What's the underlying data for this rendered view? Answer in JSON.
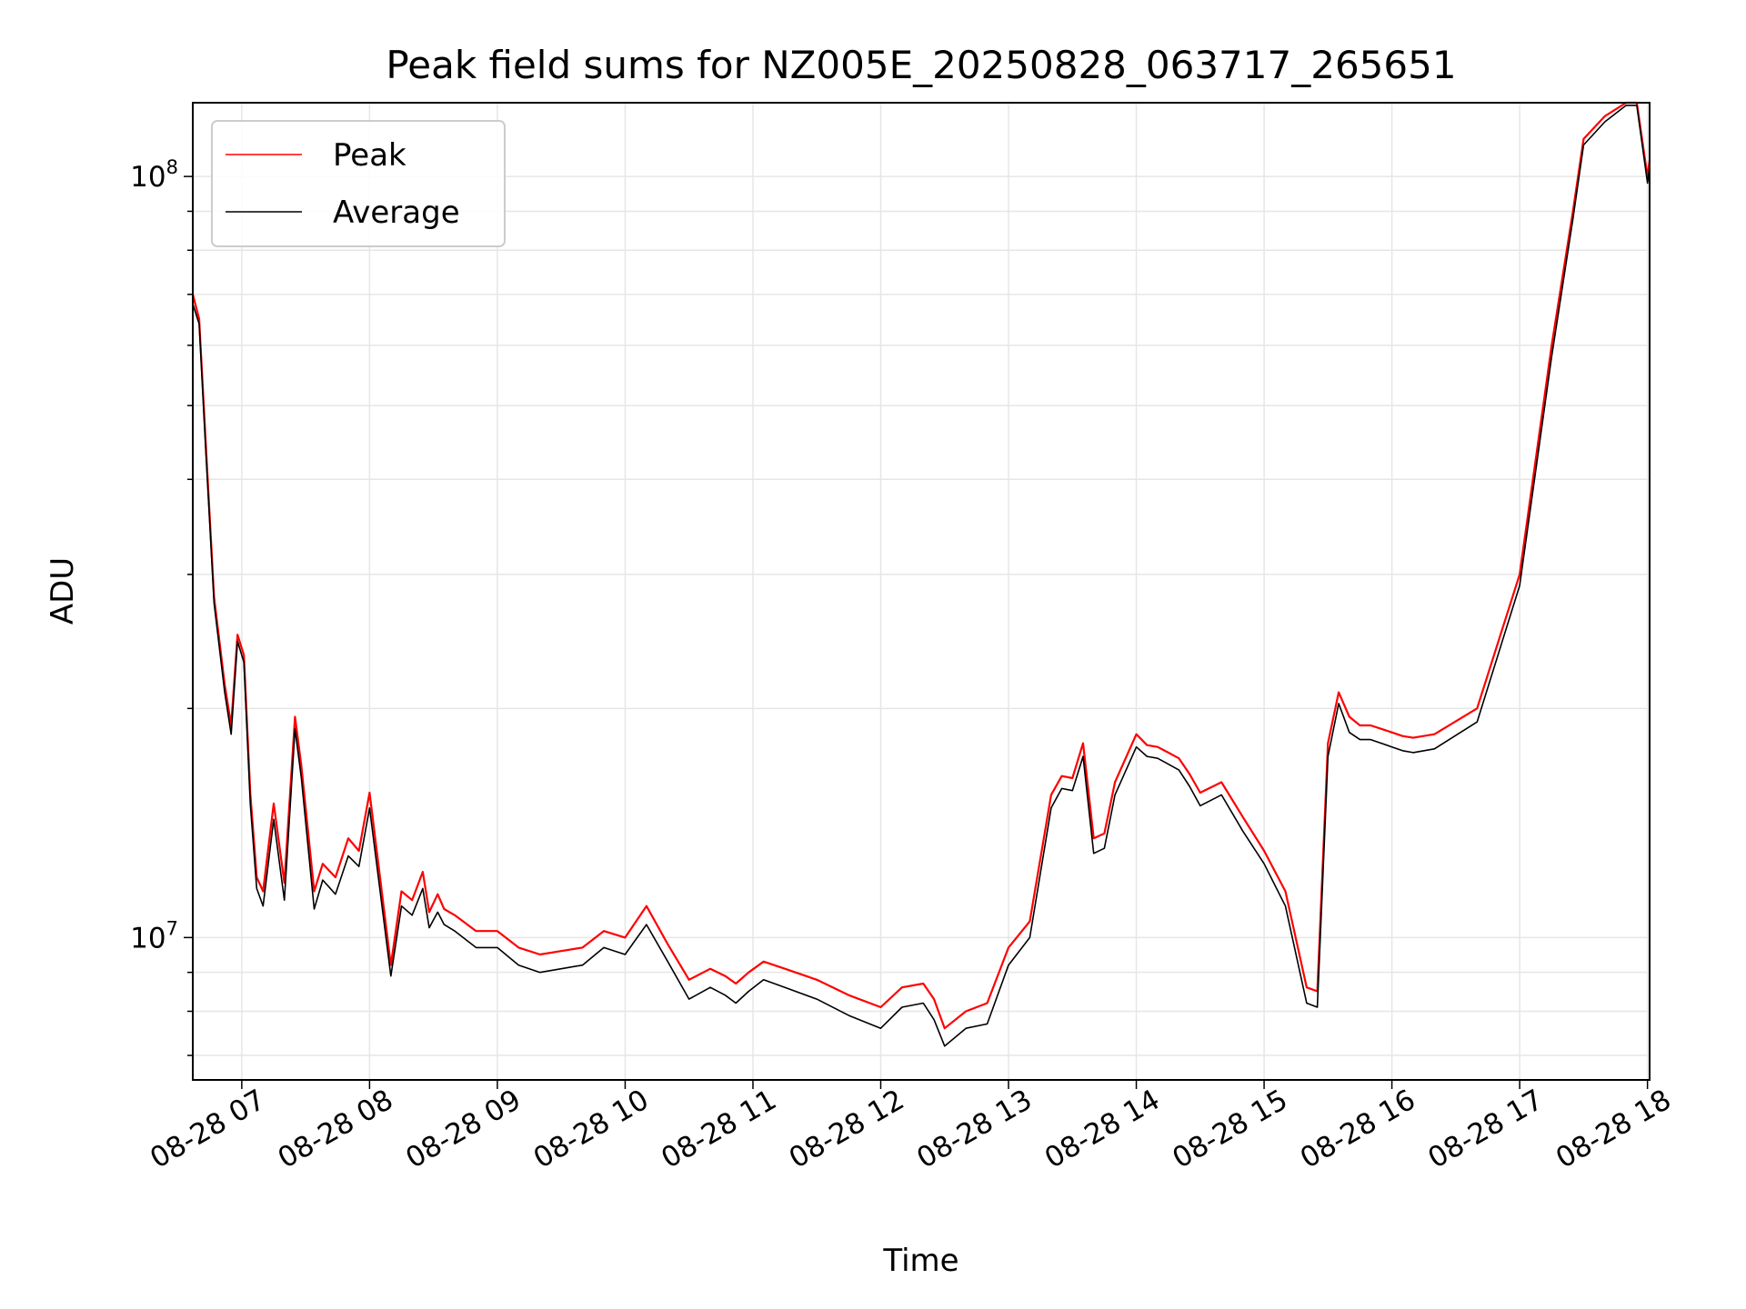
{
  "chart_data": {
    "type": "line",
    "title": "Peak field sums for NZ005E_20250828_063717_265651",
    "xlabel": "Time",
    "ylabel": "ADU",
    "yscale": "log",
    "ylim": [
      6500000,
      125000000
    ],
    "xlim": [
      "2025-08-28 06:37",
      "2025-08-28 18:01"
    ],
    "x_tick_labels": [
      "08-28 07",
      "08-28 08",
      "08-28 09",
      "08-28 10",
      "08-28 11",
      "08-28 12",
      "08-28 13",
      "08-28 14",
      "08-28 15",
      "08-28 16",
      "08-28 17",
      "08-28 18"
    ],
    "y_tick_labels": [
      {
        "base": "10",
        "exp": "7",
        "value": 10000000
      },
      {
        "base": "10",
        "exp": "8",
        "value": 100000000
      }
    ],
    "grid": true,
    "legend_position": "top-left",
    "series": [
      {
        "name": "Peak",
        "color": "#ff0000",
        "x": [
          "2025-08-28 06:37",
          "2025-08-28 06:40",
          "2025-08-28 06:43",
          "2025-08-28 06:47",
          "2025-08-28 06:52",
          "2025-08-28 06:55",
          "2025-08-28 06:58",
          "2025-08-28 07:01",
          "2025-08-28 07:04",
          "2025-08-28 07:07",
          "2025-08-28 07:10",
          "2025-08-28 07:15",
          "2025-08-28 07:20",
          "2025-08-28 07:25",
          "2025-08-28 07:28",
          "2025-08-28 07:34",
          "2025-08-28 07:38",
          "2025-08-28 07:44",
          "2025-08-28 07:50",
          "2025-08-28 07:55",
          "2025-08-28 08:00",
          "2025-08-28 08:10",
          "2025-08-28 08:15",
          "2025-08-28 08:20",
          "2025-08-28 08:25",
          "2025-08-28 08:28",
          "2025-08-28 08:32",
          "2025-08-28 08:35",
          "2025-08-28 08:40",
          "2025-08-28 08:50",
          "2025-08-28 09:00",
          "2025-08-28 09:10",
          "2025-08-28 09:20",
          "2025-08-28 09:30",
          "2025-08-28 09:40",
          "2025-08-28 09:50",
          "2025-08-28 10:00",
          "2025-08-28 10:10",
          "2025-08-28 10:20",
          "2025-08-28 10:30",
          "2025-08-28 10:40",
          "2025-08-28 10:47",
          "2025-08-28 10:52",
          "2025-08-28 10:58",
          "2025-08-28 11:05",
          "2025-08-28 11:15",
          "2025-08-28 11:30",
          "2025-08-28 11:45",
          "2025-08-28 12:00",
          "2025-08-28 12:10",
          "2025-08-28 12:20",
          "2025-08-28 12:25",
          "2025-08-28 12:30",
          "2025-08-28 12:40",
          "2025-08-28 12:50",
          "2025-08-28 13:00",
          "2025-08-28 13:10",
          "2025-08-28 13:20",
          "2025-08-28 13:25",
          "2025-08-28 13:30",
          "2025-08-28 13:35",
          "2025-08-28 13:40",
          "2025-08-28 13:45",
          "2025-08-28 13:50",
          "2025-08-28 14:00",
          "2025-08-28 14:05",
          "2025-08-28 14:10",
          "2025-08-28 14:15",
          "2025-08-28 14:20",
          "2025-08-28 14:25",
          "2025-08-28 14:30",
          "2025-08-28 14:40",
          "2025-08-28 14:50",
          "2025-08-28 15:00",
          "2025-08-28 15:10",
          "2025-08-28 15:20",
          "2025-08-28 15:25",
          "2025-08-28 15:30",
          "2025-08-28 15:35",
          "2025-08-28 15:40",
          "2025-08-28 15:45",
          "2025-08-28 15:50",
          "2025-08-28 15:55",
          "2025-08-28 16:00",
          "2025-08-28 16:05",
          "2025-08-28 16:10",
          "2025-08-28 16:20",
          "2025-08-28 16:40",
          "2025-08-28 17:00",
          "2025-08-28 17:15",
          "2025-08-28 17:25",
          "2025-08-28 17:30",
          "2025-08-28 17:40",
          "2025-08-28 17:50",
          "2025-08-28 17:55",
          "2025-08-28 18:00",
          "2025-08-28 18:01"
        ],
        "values": [
          70000000,
          65000000,
          45000000,
          28000000,
          21500000,
          19000000,
          25000000,
          23500000,
          15500000,
          12000000,
          11500000,
          15000000,
          11800000,
          19500000,
          16800000,
          11500000,
          12500000,
          12000000,
          13500000,
          13000000,
          15500000,
          9200000,
          11500000,
          11200000,
          12200000,
          10800000,
          11400000,
          10900000,
          10700000,
          10200000,
          10200000,
          9700000,
          9500000,
          9600000,
          9700000,
          10200000,
          10000000,
          11000000,
          9800000,
          8800000,
          9100000,
          8900000,
          8700000,
          9000000,
          9300000,
          9100000,
          8800000,
          8400000,
          8100000,
          8600000,
          8700000,
          8300000,
          7600000,
          8000000,
          8200000,
          9700000,
          10500000,
          15400000,
          16300000,
          16200000,
          18000000,
          13500000,
          13700000,
          16000000,
          18500000,
          17900000,
          17800000,
          17500000,
          17200000,
          16400000,
          15500000,
          16000000,
          14400000,
          13000000,
          11500000,
          8600000,
          8500000,
          18000000,
          21000000,
          19500000,
          19000000,
          19000000,
          18800000,
          18600000,
          18400000,
          18300000,
          18500000,
          20000000,
          30000000,
          60000000,
          90000000,
          112000000,
          120000000,
          125000000,
          125000000,
          100000000,
          105000000
        ]
      },
      {
        "name": "Average",
        "color": "#000000",
        "x": [
          "2025-08-28 06:37",
          "2025-08-28 06:40",
          "2025-08-28 06:43",
          "2025-08-28 06:47",
          "2025-08-28 06:52",
          "2025-08-28 06:55",
          "2025-08-28 06:58",
          "2025-08-28 07:01",
          "2025-08-28 07:04",
          "2025-08-28 07:07",
          "2025-08-28 07:10",
          "2025-08-28 07:15",
          "2025-08-28 07:20",
          "2025-08-28 07:25",
          "2025-08-28 07:28",
          "2025-08-28 07:34",
          "2025-08-28 07:38",
          "2025-08-28 07:44",
          "2025-08-28 07:50",
          "2025-08-28 07:55",
          "2025-08-28 08:00",
          "2025-08-28 08:10",
          "2025-08-28 08:15",
          "2025-08-28 08:20",
          "2025-08-28 08:25",
          "2025-08-28 08:28",
          "2025-08-28 08:32",
          "2025-08-28 08:35",
          "2025-08-28 08:40",
          "2025-08-28 08:50",
          "2025-08-28 09:00",
          "2025-08-28 09:10",
          "2025-08-28 09:20",
          "2025-08-28 09:30",
          "2025-08-28 09:40",
          "2025-08-28 09:50",
          "2025-08-28 10:00",
          "2025-08-28 10:10",
          "2025-08-28 10:20",
          "2025-08-28 10:30",
          "2025-08-28 10:40",
          "2025-08-28 10:47",
          "2025-08-28 10:52",
          "2025-08-28 10:58",
          "2025-08-28 11:05",
          "2025-08-28 11:15",
          "2025-08-28 11:30",
          "2025-08-28 11:45",
          "2025-08-28 12:00",
          "2025-08-28 12:10",
          "2025-08-28 12:20",
          "2025-08-28 12:25",
          "2025-08-28 12:30",
          "2025-08-28 12:40",
          "2025-08-28 12:50",
          "2025-08-28 13:00",
          "2025-08-28 13:10",
          "2025-08-28 13:20",
          "2025-08-28 13:25",
          "2025-08-28 13:30",
          "2025-08-28 13:35",
          "2025-08-28 13:40",
          "2025-08-28 13:45",
          "2025-08-28 13:50",
          "2025-08-28 14:00",
          "2025-08-28 14:05",
          "2025-08-28 14:10",
          "2025-08-28 14:15",
          "2025-08-28 14:20",
          "2025-08-28 14:25",
          "2025-08-28 14:30",
          "2025-08-28 14:40",
          "2025-08-28 14:50",
          "2025-08-28 15:00",
          "2025-08-28 15:10",
          "2025-08-28 15:20",
          "2025-08-28 15:25",
          "2025-08-28 15:30",
          "2025-08-28 15:35",
          "2025-08-28 15:40",
          "2025-08-28 15:45",
          "2025-08-28 15:50",
          "2025-08-28 15:55",
          "2025-08-28 16:00",
          "2025-08-28 16:05",
          "2025-08-28 16:10",
          "2025-08-28 16:20",
          "2025-08-28 16:40",
          "2025-08-28 17:00",
          "2025-08-28 17:15",
          "2025-08-28 17:25",
          "2025-08-28 17:30",
          "2025-08-28 17:40",
          "2025-08-28 17:50",
          "2025-08-28 17:55",
          "2025-08-28 18:00",
          "2025-08-28 18:01"
        ],
        "values": [
          68000000,
          64000000,
          44000000,
          27500000,
          21000000,
          18500000,
          24500000,
          23000000,
          15000000,
          11600000,
          11000000,
          14300000,
          11200000,
          18800000,
          16200000,
          10900000,
          11900000,
          11400000,
          12800000,
          12400000,
          14800000,
          8900000,
          11000000,
          10700000,
          11600000,
          10300000,
          10800000,
          10400000,
          10200000,
          9700000,
          9700000,
          9200000,
          9000000,
          9100000,
          9200000,
          9700000,
          9500000,
          10400000,
          9300000,
          8300000,
          8600000,
          8400000,
          8200000,
          8500000,
          8800000,
          8600000,
          8300000,
          7900000,
          7600000,
          8100000,
          8200000,
          7800000,
          7200000,
          7600000,
          7700000,
          9200000,
          10000000,
          14800000,
          15700000,
          15600000,
          17300000,
          12900000,
          13100000,
          15400000,
          17800000,
          17300000,
          17200000,
          16900000,
          16600000,
          15800000,
          14900000,
          15400000,
          13800000,
          12500000,
          11000000,
          8200000,
          8100000,
          17300000,
          20300000,
          18600000,
          18200000,
          18200000,
          18000000,
          17800000,
          17600000,
          17500000,
          17700000,
          19200000,
          29000000,
          58000000,
          88000000,
          110000000,
          118000000,
          124000000,
          124000000,
          98000000,
          103000000
        ]
      }
    ]
  }
}
